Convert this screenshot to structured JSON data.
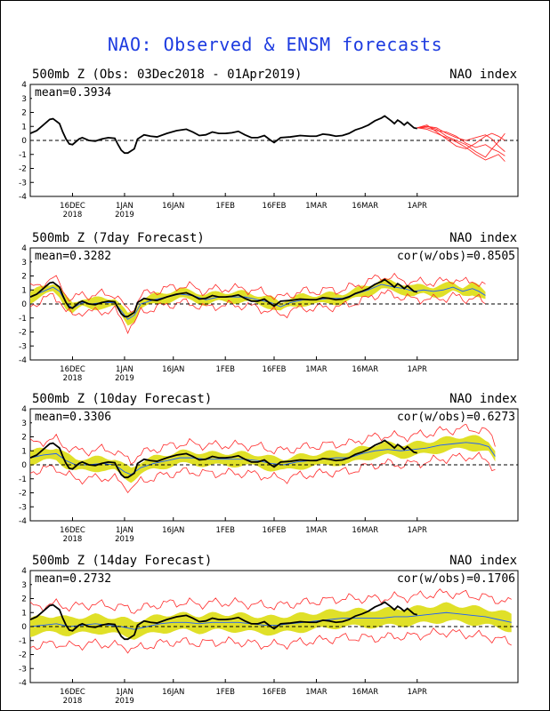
{
  "title": "NAO: Observed & ENSM forecasts",
  "chart_data": [
    {
      "type": "line",
      "title": "500mb Z (Obs: 03Dec2018 - 01Apr2019)",
      "index_label": "NAO index",
      "mean_label": "mean=0.3934",
      "cor_label": "",
      "ylim": [
        -4,
        4
      ],
      "yticks": [
        "-4",
        "-3",
        "-2",
        "-1",
        "0",
        "1",
        "2",
        "3",
        "4"
      ],
      "xlim": [
        0,
        150
      ],
      "x_ticks": [
        {
          "day": 13,
          "label": "16DEC",
          "sub": "2018"
        },
        {
          "day": 29,
          "label": "1JAN",
          "sub": "2019"
        },
        {
          "day": 44,
          "label": "16JAN",
          "sub": ""
        },
        {
          "day": 60,
          "label": "1FEB",
          "sub": ""
        },
        {
          "day": 75,
          "label": "16FEB",
          "sub": ""
        },
        {
          "day": 88,
          "label": "1MAR",
          "sub": ""
        },
        {
          "day": 103,
          "label": "16MAR",
          "sub": ""
        },
        {
          "day": 119,
          "label": "1APR",
          "sub": ""
        }
      ],
      "obs": [
        [
          0,
          0.5
        ],
        [
          2,
          0.7
        ],
        [
          4,
          1.1
        ],
        [
          6,
          1.5
        ],
        [
          7,
          1.55
        ],
        [
          9,
          1.2
        ],
        [
          10,
          0.6
        ],
        [
          11,
          0.1
        ],
        [
          12,
          -0.25
        ],
        [
          13,
          -0.3
        ],
        [
          15,
          0.1
        ],
        [
          16,
          0.2
        ],
        [
          18,
          0.0
        ],
        [
          20,
          -0.05
        ],
        [
          22,
          0.1
        ],
        [
          24,
          0.2
        ],
        [
          26,
          0.15
        ],
        [
          27,
          -0.3
        ],
        [
          28,
          -0.7
        ],
        [
          29,
          -0.9
        ],
        [
          30,
          -0.9
        ],
        [
          32,
          -0.6
        ],
        [
          33,
          0.1
        ],
        [
          35,
          0.4
        ],
        [
          37,
          0.3
        ],
        [
          39,
          0.25
        ],
        [
          42,
          0.5
        ],
        [
          45,
          0.7
        ],
        [
          48,
          0.8
        ],
        [
          50,
          0.6
        ],
        [
          52,
          0.35
        ],
        [
          54,
          0.4
        ],
        [
          56,
          0.6
        ],
        [
          58,
          0.5
        ],
        [
          60,
          0.5
        ],
        [
          62,
          0.55
        ],
        [
          64,
          0.65
        ],
        [
          66,
          0.4
        ],
        [
          68,
          0.2
        ],
        [
          70,
          0.2
        ],
        [
          72,
          0.35
        ],
        [
          74,
          0.0
        ],
        [
          75,
          -0.15
        ],
        [
          77,
          0.2
        ],
        [
          80,
          0.25
        ],
        [
          83,
          0.35
        ],
        [
          86,
          0.3
        ],
        [
          88,
          0.3
        ],
        [
          90,
          0.45
        ],
        [
          92,
          0.4
        ],
        [
          94,
          0.3
        ],
        [
          96,
          0.35
        ],
        [
          98,
          0.5
        ],
        [
          100,
          0.75
        ],
        [
          102,
          0.9
        ],
        [
          104,
          1.1
        ],
        [
          106,
          1.4
        ],
        [
          108,
          1.6
        ],
        [
          109,
          1.75
        ],
        [
          111,
          1.4
        ],
        [
          112,
          1.2
        ],
        [
          113,
          1.45
        ],
        [
          114,
          1.3
        ],
        [
          115,
          1.1
        ],
        [
          116,
          1.3
        ],
        [
          118,
          0.9
        ],
        [
          119,
          0.85
        ]
      ],
      "forecast_members": [
        [
          [
            119,
            0.9
          ],
          [
            122,
            1.0
          ],
          [
            125,
            0.8
          ],
          [
            128,
            0.3
          ],
          [
            131,
            0.0
          ],
          [
            134,
            -0.3
          ],
          [
            137,
            -0.8
          ],
          [
            140,
            -1.2
          ],
          [
            142,
            -0.6
          ],
          [
            144,
            -0.1
          ],
          [
            146,
            0.5
          ]
        ],
        [
          [
            119,
            0.9
          ],
          [
            122,
            1.1
          ],
          [
            125,
            0.6
          ],
          [
            128,
            0.1
          ],
          [
            131,
            -0.4
          ],
          [
            134,
            -0.6
          ],
          [
            137,
            -0.2
          ],
          [
            140,
            0.3
          ],
          [
            142,
            0.5
          ],
          [
            144,
            0.3
          ],
          [
            146,
            0.0
          ]
        ],
        [
          [
            119,
            0.9
          ],
          [
            122,
            0.8
          ],
          [
            125,
            0.5
          ],
          [
            128,
            0.2
          ],
          [
            131,
            -0.1
          ],
          [
            134,
            -0.5
          ],
          [
            137,
            -1.0
          ],
          [
            140,
            -1.4
          ],
          [
            142,
            -1.2
          ],
          [
            144,
            -1.0
          ],
          [
            146,
            -1.5
          ]
        ],
        [
          [
            119,
            0.9
          ],
          [
            122,
            1.0
          ],
          [
            125,
            0.9
          ],
          [
            128,
            0.5
          ],
          [
            131,
            0.2
          ],
          [
            134,
            0.0
          ],
          [
            137,
            0.2
          ],
          [
            140,
            0.4
          ],
          [
            142,
            0.1
          ],
          [
            144,
            -0.4
          ],
          [
            146,
            -0.8
          ]
        ],
        [
          [
            119,
            0.9
          ],
          [
            122,
            0.9
          ],
          [
            125,
            0.7
          ],
          [
            128,
            0.6
          ],
          [
            131,
            0.3
          ],
          [
            134,
            -0.2
          ],
          [
            137,
            -0.5
          ],
          [
            140,
            -0.3
          ],
          [
            142,
            -0.6
          ],
          [
            144,
            -0.8
          ],
          [
            146,
            -1.1
          ]
        ]
      ]
    },
    {
      "type": "area",
      "title": "500mb Z (7day Forecast)",
      "index_label": "NAO index",
      "mean_label": "mean=0.3282",
      "cor_label": "cor(w/obs)=0.8505",
      "ylim": [
        -4,
        4
      ],
      "yticks": [
        "-4",
        "-3",
        "-2",
        "-1",
        "0",
        "1",
        "2",
        "3",
        "4"
      ],
      "xlim": [
        0,
        150
      ],
      "obs_ref": true,
      "forecast_start": 0,
      "forecast_end": 140,
      "forecast_mean": [
        [
          0,
          0.5
        ],
        [
          4,
          0.9
        ],
        [
          7,
          1.2
        ],
        [
          9,
          0.9
        ],
        [
          11,
          0.1
        ],
        [
          13,
          -0.3
        ],
        [
          16,
          0.1
        ],
        [
          19,
          0.0
        ],
        [
          22,
          0.1
        ],
        [
          26,
          0.1
        ],
        [
          28,
          -0.5
        ],
        [
          30,
          -1.1
        ],
        [
          32,
          -0.8
        ],
        [
          34,
          0.0
        ],
        [
          38,
          0.3
        ],
        [
          42,
          0.5
        ],
        [
          46,
          0.7
        ],
        [
          50,
          0.6
        ],
        [
          54,
          0.3
        ],
        [
          58,
          0.5
        ],
        [
          62,
          0.5
        ],
        [
          66,
          0.5
        ],
        [
          70,
          0.3
        ],
        [
          74,
          0.1
        ],
        [
          77,
          -0.2
        ],
        [
          80,
          0.1
        ],
        [
          84,
          0.3
        ],
        [
          88,
          0.3
        ],
        [
          92,
          0.4
        ],
        [
          96,
          0.4
        ],
        [
          100,
          0.7
        ],
        [
          104,
          1.0
        ],
        [
          108,
          1.4
        ],
        [
          112,
          1.2
        ],
        [
          115,
          1.1
        ],
        [
          118,
          0.9
        ],
        [
          121,
          1.0
        ],
        [
          124,
          0.9
        ],
        [
          127,
          1.0
        ],
        [
          130,
          1.2
        ],
        [
          133,
          0.9
        ],
        [
          136,
          1.1
        ],
        [
          138,
          0.9
        ],
        [
          140,
          0.6
        ]
      ],
      "spread_inner": 0.35,
      "spread_outer": 0.6
    },
    {
      "type": "area",
      "title": "500mb Z (10day Forecast)",
      "index_label": "NAO index",
      "mean_label": "mean=0.3306",
      "cor_label": "cor(w/obs)=0.6273",
      "ylim": [
        -4,
        4
      ],
      "yticks": [
        "-4",
        "-3",
        "-2",
        "-1",
        "0",
        "1",
        "2",
        "3",
        "4"
      ],
      "xlim": [
        0,
        150
      ],
      "obs_ref": true,
      "forecast_start": 0,
      "forecast_end": 143,
      "forecast_mean": [
        [
          0,
          0.5
        ],
        [
          4,
          0.7
        ],
        [
          8,
          0.8
        ],
        [
          11,
          0.3
        ],
        [
          14,
          0.0
        ],
        [
          18,
          0.0
        ],
        [
          22,
          0.1
        ],
        [
          26,
          0.0
        ],
        [
          29,
          -0.5
        ],
        [
          31,
          -0.7
        ],
        [
          34,
          -0.2
        ],
        [
          38,
          0.1
        ],
        [
          42,
          0.3
        ],
        [
          46,
          0.5
        ],
        [
          50,
          0.5
        ],
        [
          54,
          0.4
        ],
        [
          58,
          0.4
        ],
        [
          62,
          0.4
        ],
        [
          66,
          0.4
        ],
        [
          70,
          0.3
        ],
        [
          74,
          0.1
        ],
        [
          78,
          0.0
        ],
        [
          82,
          0.2
        ],
        [
          86,
          0.3
        ],
        [
          90,
          0.4
        ],
        [
          94,
          0.5
        ],
        [
          98,
          0.5
        ],
        [
          102,
          0.8
        ],
        [
          106,
          1.0
        ],
        [
          110,
          1.1
        ],
        [
          114,
          1.0
        ],
        [
          118,
          1.1
        ],
        [
          122,
          1.2
        ],
        [
          126,
          1.4
        ],
        [
          130,
          1.5
        ],
        [
          134,
          1.6
        ],
        [
          138,
          1.5
        ],
        [
          141,
          1.3
        ],
        [
          143,
          0.6
        ]
      ],
      "spread_inner": 0.45,
      "spread_outer": 1.0
    },
    {
      "type": "area",
      "title": "500mb Z (14day Forecast)",
      "index_label": "NAO index",
      "mean_label": "mean=0.2732",
      "cor_label": "cor(w/obs)=0.1706",
      "ylim": [
        -4,
        4
      ],
      "yticks": [
        "-4",
        "-3",
        "-2",
        "-1",
        "0",
        "1",
        "2",
        "3",
        "4"
      ],
      "xlim": [
        0,
        150
      ],
      "obs_ref": true,
      "forecast_start": 0,
      "forecast_end": 148,
      "forecast_mean": [
        [
          0,
          0.0
        ],
        [
          4,
          0.1
        ],
        [
          8,
          0.2
        ],
        [
          12,
          0.0
        ],
        [
          16,
          0.1
        ],
        [
          20,
          0.2
        ],
        [
          24,
          0.1
        ],
        [
          28,
          0.0
        ],
        [
          32,
          -0.2
        ],
        [
          36,
          0.0
        ],
        [
          40,
          0.2
        ],
        [
          44,
          0.3
        ],
        [
          48,
          0.3
        ],
        [
          52,
          0.2
        ],
        [
          56,
          0.3
        ],
        [
          60,
          0.3
        ],
        [
          64,
          0.3
        ],
        [
          68,
          0.2
        ],
        [
          72,
          0.1
        ],
        [
          76,
          0.1
        ],
        [
          80,
          0.2
        ],
        [
          84,
          0.3
        ],
        [
          88,
          0.4
        ],
        [
          92,
          0.5
        ],
        [
          96,
          0.6
        ],
        [
          100,
          0.6
        ],
        [
          104,
          0.6
        ],
        [
          108,
          0.6
        ],
        [
          112,
          0.7
        ],
        [
          116,
          0.7
        ],
        [
          120,
          0.8
        ],
        [
          124,
          0.9
        ],
        [
          128,
          1.0
        ],
        [
          132,
          0.9
        ],
        [
          136,
          0.8
        ],
        [
          140,
          0.7
        ],
        [
          144,
          0.5
        ],
        [
          148,
          0.3
        ]
      ],
      "spread_inner": 0.6,
      "spread_outer": 1.4
    }
  ],
  "colors": {
    "title": "#1d3be0",
    "obs": "#000000",
    "member": "#ff2a2a",
    "band": "#e0e028",
    "mean": "#1a5cff",
    "zero": "#000000"
  }
}
